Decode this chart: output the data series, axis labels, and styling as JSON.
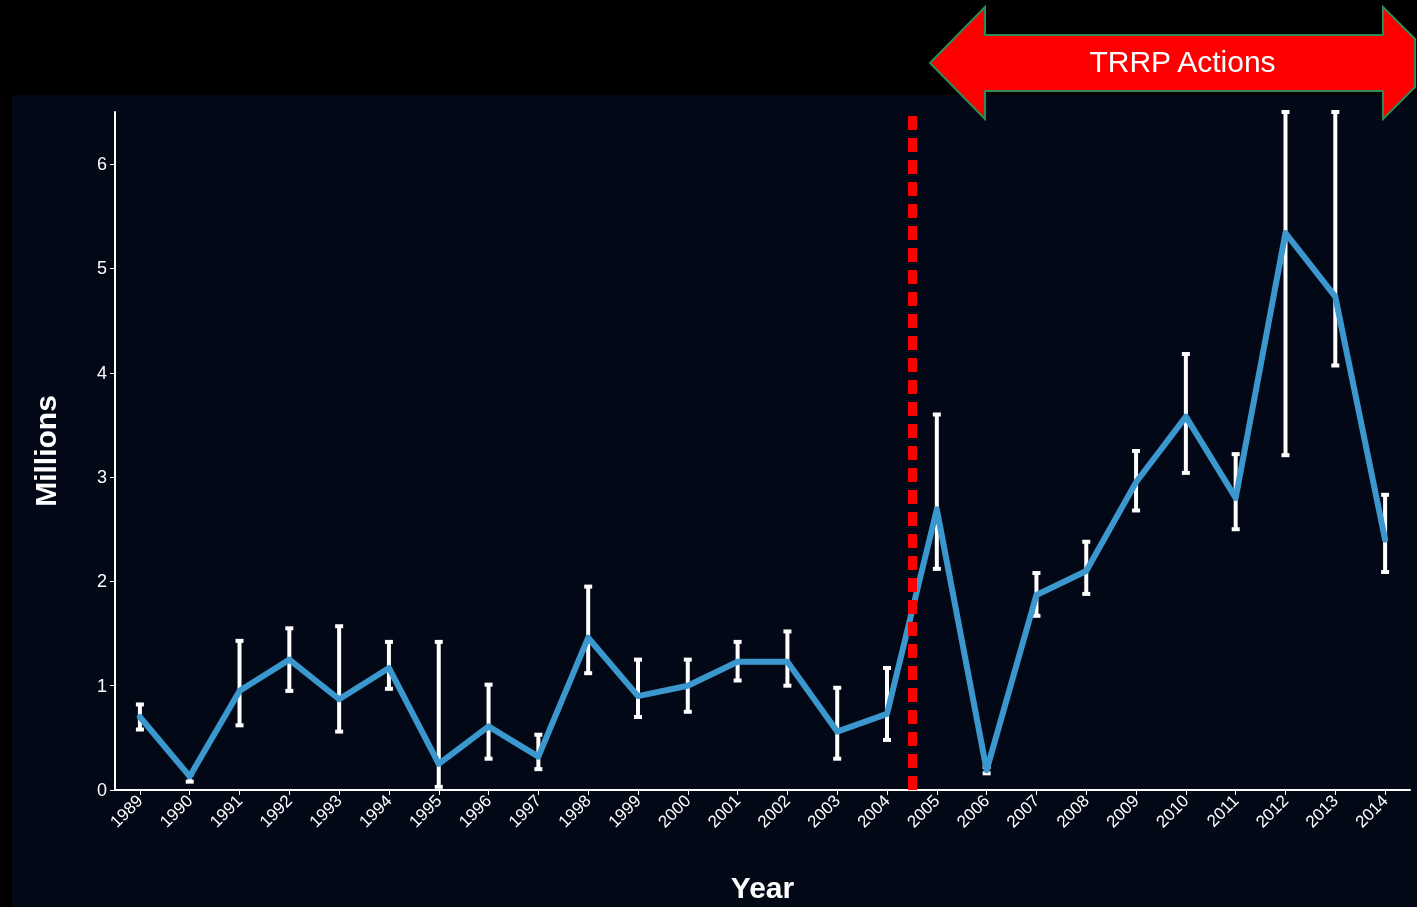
{
  "chart_data": {
    "type": "line",
    "xlabel": "Year",
    "ylabel": "Millions",
    "x": [
      1989,
      1990,
      1991,
      1992,
      1993,
      1994,
      1995,
      1996,
      1997,
      1998,
      1999,
      2000,
      2001,
      2002,
      2003,
      2004,
      2005,
      2006,
      2007,
      2008,
      2009,
      2010,
      2011,
      2012,
      2013,
      2014
    ],
    "series": [
      {
        "color": "#3a98cf",
        "values": [
          0.7,
          0.13,
          0.95,
          1.25,
          0.87,
          1.17,
          0.25,
          0.61,
          0.32,
          1.46,
          0.9,
          1.0,
          1.23,
          1.23,
          0.56,
          0.73,
          2.69,
          0.19,
          1.87,
          2.1,
          2.95,
          3.58,
          2.8,
          5.34,
          4.73,
          2.4
        ],
        "errors": [
          [
            0.58,
            0.82
          ],
          [
            0.08,
            0.15
          ],
          [
            0.62,
            1.43
          ],
          [
            0.95,
            1.55
          ],
          [
            0.56,
            1.57
          ],
          [
            0.97,
            1.42
          ],
          [
            0.03,
            1.42
          ],
          [
            0.3,
            1.01
          ],
          [
            0.2,
            0.53
          ],
          [
            1.12,
            1.95
          ],
          [
            0.7,
            1.25
          ],
          [
            0.75,
            1.25
          ],
          [
            1.05,
            1.42
          ],
          [
            1.0,
            1.52
          ],
          [
            0.3,
            0.98
          ],
          [
            0.48,
            1.17
          ],
          [
            2.12,
            3.6
          ],
          [
            0.16,
            0.22
          ],
          [
            1.67,
            2.08
          ],
          [
            1.88,
            2.38
          ],
          [
            2.68,
            3.25
          ],
          [
            3.04,
            4.18
          ],
          [
            2.5,
            3.22
          ],
          [
            3.21,
            6.5
          ],
          [
            4.07,
            6.5
          ],
          [
            2.09,
            2.83
          ]
        ]
      }
    ],
    "xlim": [
      1988.5,
      2014.5
    ],
    "xticks": [
      1989,
      1990,
      1991,
      1992,
      1993,
      1994,
      1995,
      1996,
      1997,
      1998,
      1999,
      2000,
      2001,
      2002,
      2003,
      2004,
      2005,
      2006,
      2007,
      2008,
      2009,
      2010,
      2011,
      2012,
      2013,
      2014
    ],
    "ylim": [
      0,
      6.5
    ],
    "yticks": [
      0,
      1,
      2,
      3,
      4,
      5,
      6
    ],
    "ref_lines": [
      {
        "axis": "x",
        "value": 2004.5,
        "color": "#ff0000",
        "line_style": "dashed"
      }
    ],
    "annotations": [
      "TRRP Actions"
    ],
    "grid": false,
    "marker": "none",
    "line_style": "solid"
  }
}
